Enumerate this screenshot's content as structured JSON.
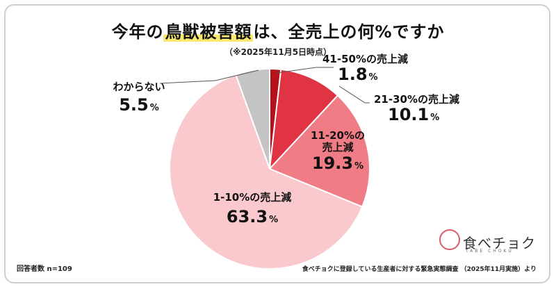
{
  "title_pre": "今年の",
  "title_hl": "鳥獣被害額",
  "title_post": "は、全売上の何%ですか",
  "date_note": "（※2025年11月5日時点）",
  "respondents": "回答者数 n=109",
  "source": "食べチョクに登録している生産者に対する緊急実態調査 （2025年11月実施）より",
  "logo": {
    "brand": "食べチョク",
    "sub": "TABE CHOKU",
    "icon": "tabechoku-logo-icon"
  },
  "chart_data": {
    "type": "pie",
    "start": "12 o'clock, clockwise",
    "slices": [
      {
        "label": "41-50%の売上減",
        "value": 1.8,
        "value_text": "1.8",
        "color": "#b5121b"
      },
      {
        "label": "21-30%の売上減",
        "value": 10.1,
        "value_text": "10.1",
        "color": "#e03343"
      },
      {
        "label": "11-20%の売上減",
        "value": 19.3,
        "value_text": "19.3",
        "color": "#f07d86"
      },
      {
        "label": "1-10%の売上減",
        "value": 63.3,
        "value_text": "63.3",
        "color": "#f9c9cd"
      },
      {
        "label": "わからない",
        "value": 5.5,
        "value_text": "5.5",
        "color": "#c4c4c4"
      }
    ],
    "unit": "%",
    "label_a": "11-20%の",
    "label_b": "売上減"
  }
}
